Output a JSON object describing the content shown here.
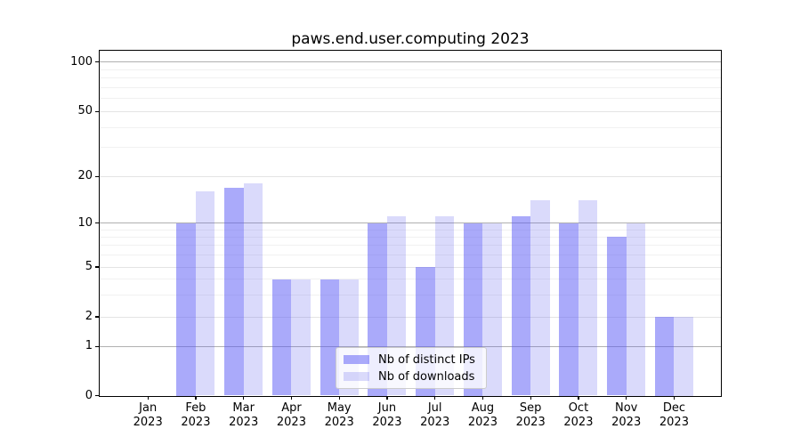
{
  "title": "paws.end.user.computing 2023",
  "legend": {
    "items": [
      {
        "label": "Nb of distinct IPs",
        "color": "rgba(85,85,245,0.5)"
      },
      {
        "label": "Nb of downloads",
        "color": "rgba(85,85,235,0.22)"
      }
    ]
  },
  "colors": {
    "distinct_ips_bar": "rgba(85,85,245,0.5)",
    "downloads_bar": "rgba(85,85,235,0.22)",
    "grid_major": "#b0b0b0",
    "grid_mid": "#e4e4e4",
    "grid_minor": "#f1f1f1",
    "axis": "#000000"
  },
  "chart_data": {
    "type": "bar",
    "title": "paws.end.user.computing 2023",
    "categories": [
      "Jan 2023",
      "Feb 2023",
      "Mar 2023",
      "Apr 2023",
      "May 2023",
      "Jun 2023",
      "Jul 2023",
      "Aug 2023",
      "Sep 2023",
      "Oct 2023",
      "Nov 2023",
      "Dec 2023"
    ],
    "series": [
      {
        "name": "Nb of distinct IPs",
        "values": [
          0,
          10,
          17,
          4,
          4,
          10,
          5,
          10,
          11,
          10,
          8,
          2
        ]
      },
      {
        "name": "Nb of downloads",
        "values": [
          0,
          16,
          18,
          4,
          4,
          11,
          11,
          10,
          14,
          14,
          10,
          2
        ]
      }
    ],
    "xlabel": "",
    "ylabel": "",
    "y_scale": "symlog-like (log above 1, linear 0-1)",
    "ylim": [
      0,
      117
    ],
    "yticks_labeled": [
      0,
      1,
      2,
      5,
      10,
      20,
      50,
      100
    ],
    "ytick_labels": [
      "0",
      "1",
      "2",
      "5",
      "10",
      "20",
      "50",
      "100"
    ],
    "grid_major_values": [
      1,
      10,
      100
    ],
    "grid_mid_values": [
      2,
      5,
      20,
      50
    ],
    "grid_minor_values": [
      3,
      4,
      6,
      7,
      8,
      9,
      30,
      40,
      60,
      70,
      80,
      90
    ],
    "grid": "on",
    "legend_position": "lower center"
  }
}
